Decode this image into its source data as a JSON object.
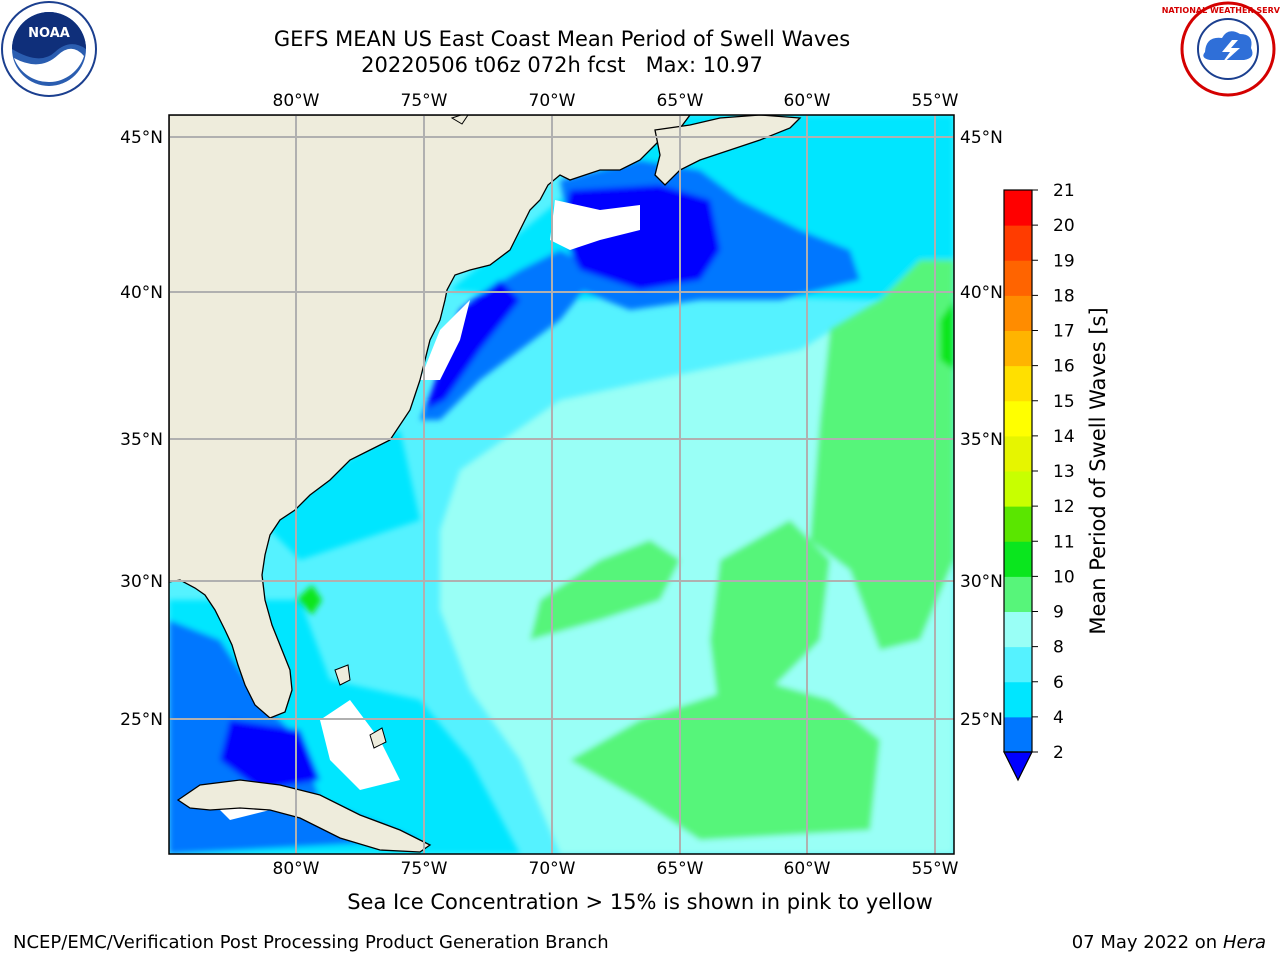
{
  "title": {
    "line1": "GEFS MEAN US East Coast Mean Period of Swell Waves",
    "line2": "20220506 t06z 072h fcst   Max: 10.97"
  },
  "map": {
    "lon_ticks": [
      "80°W",
      "75°W",
      "70°W",
      "65°W",
      "60°W",
      "55°W"
    ],
    "lat_ticks": [
      "45°N",
      "40°N",
      "35°N",
      "30°N",
      "25°N"
    ],
    "extent": {
      "lon": [
        -85,
        -54.3
      ],
      "lat": [
        20.6,
        45.8
      ]
    },
    "colors": {
      "land": "#eeecdc",
      "coast": "#000000",
      "grid": "#b0b0b0"
    }
  },
  "colorbar": {
    "label": "Mean Period of Swell Waves [s]",
    "levels": [
      "2",
      "4",
      "6",
      "8",
      "9",
      "10",
      "11",
      "12",
      "13",
      "14",
      "15",
      "16",
      "17",
      "18",
      "19",
      "20",
      "21"
    ],
    "colors": [
      "#0077ff",
      "#00e6ff",
      "#55f2ff",
      "#99fff6",
      "#57f57a",
      "#0ae61e",
      "#5ae600",
      "#c8ff00",
      "#e6f500",
      "#ffff00",
      "#ffe000",
      "#ffb400",
      "#ff8c00",
      "#ff6400",
      "#ff3c00",
      "#ff0000"
    ],
    "under_color": "#0000ff"
  },
  "footer": {
    "note": "Sea Ice Concentration > 15% is shown in pink to yellow",
    "left": "NCEP/EMC/Verification Post Processing Product Generation Branch",
    "date": "07 May 2022 on",
    "host": "Hera"
  },
  "logos": {
    "left": "noaa-logo",
    "right": "nws-logo",
    "left_text": "NOAA",
    "right_text": "NATIONAL WEATHER SERVICE"
  }
}
